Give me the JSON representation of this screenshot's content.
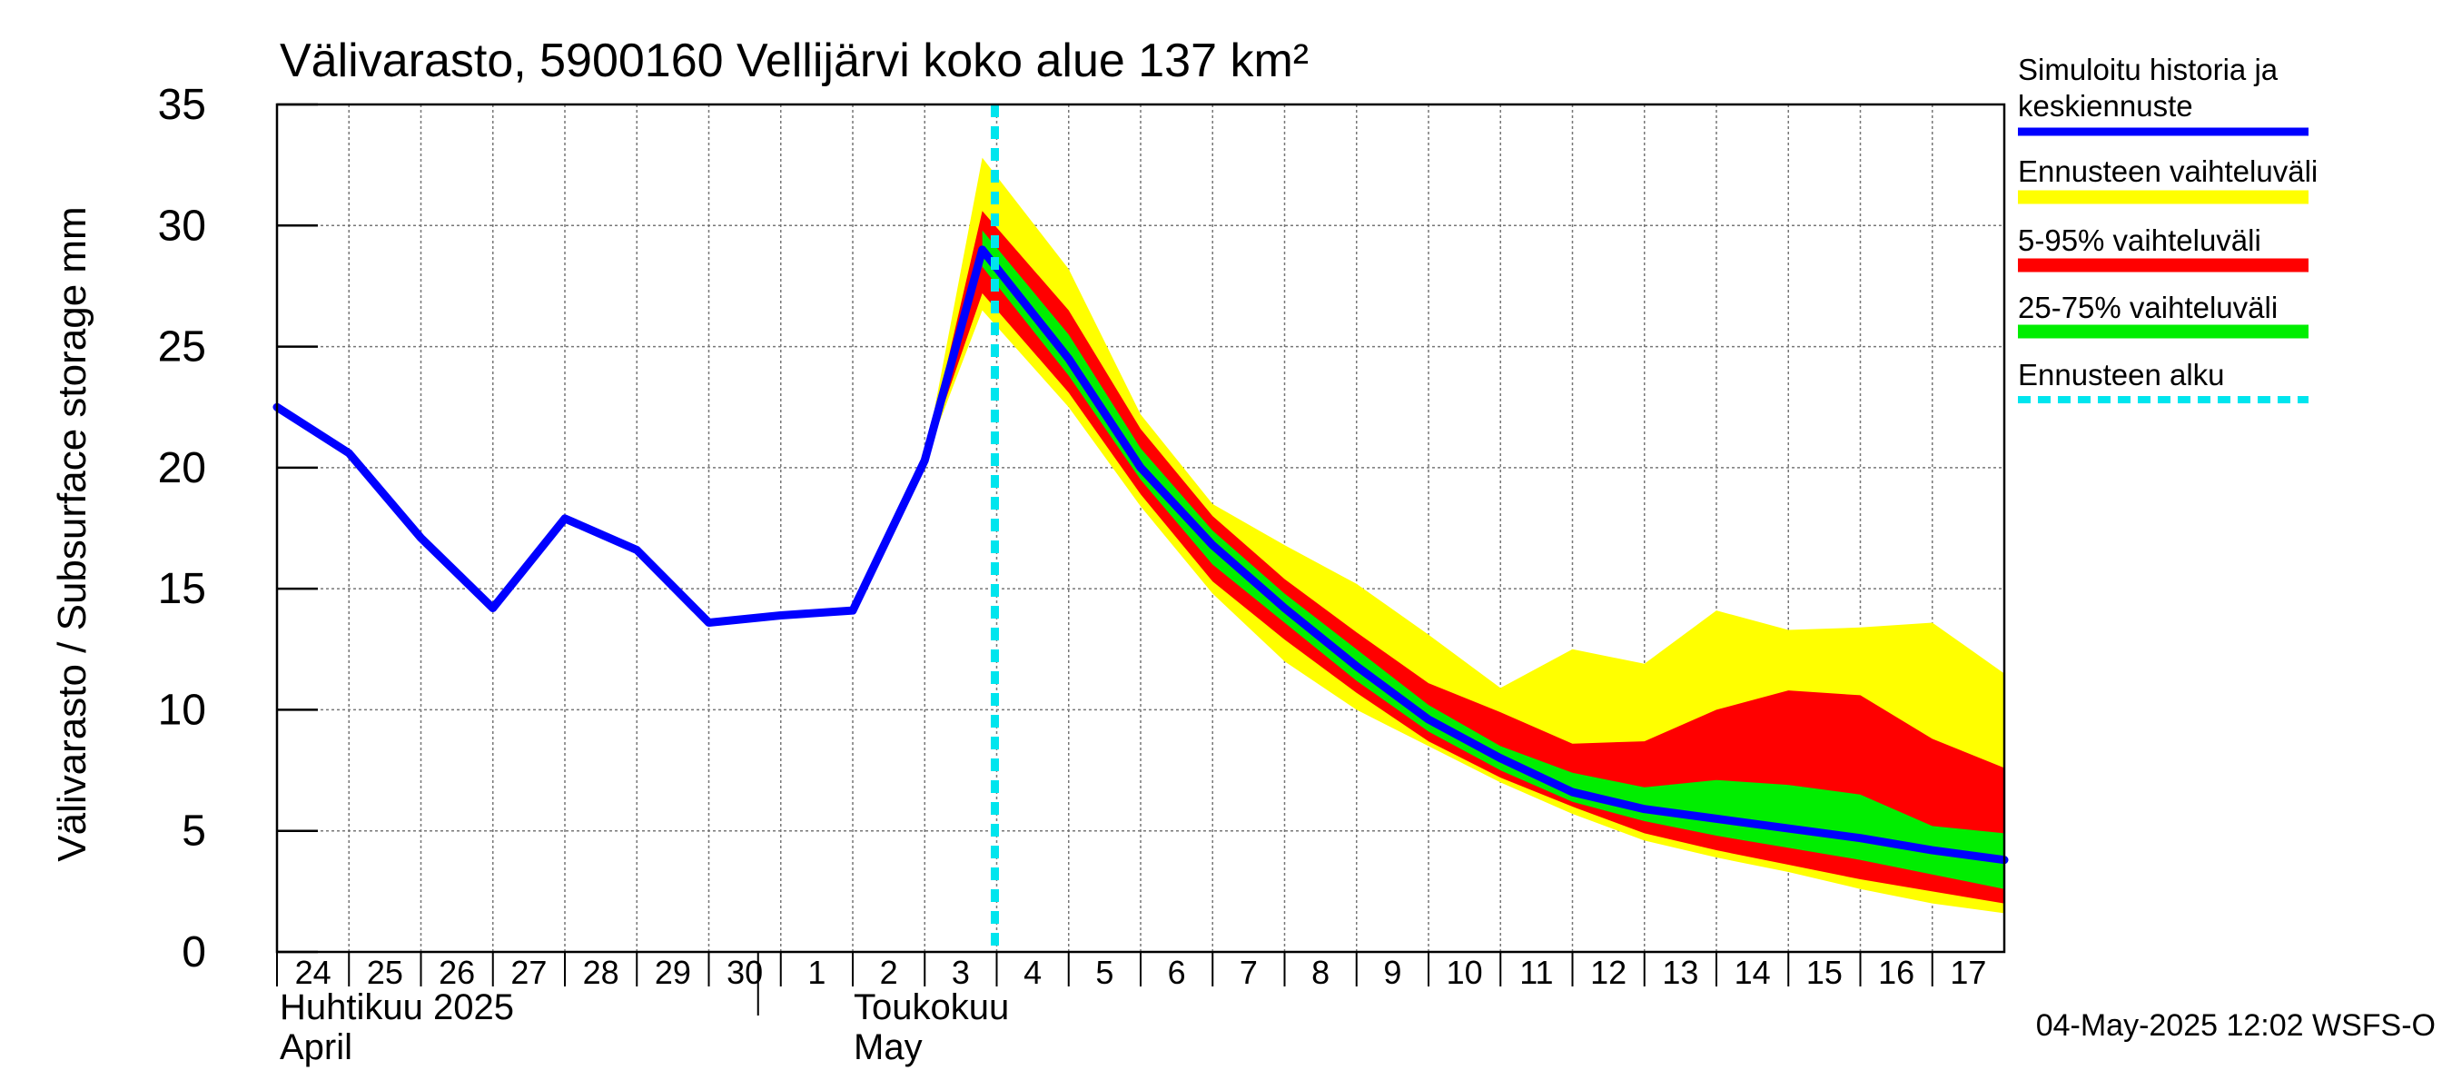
{
  "chart_data": {
    "type": "area",
    "title": "Välivarasto, 5900160 Vellijärvi koko alue 137 km²",
    "ylabel": "Välivarasto / Subsurface storage  mm",
    "ylim": [
      0,
      35
    ],
    "yticks": [
      0,
      5,
      10,
      15,
      20,
      25,
      30,
      35
    ],
    "grid": true,
    "x_day_labels": [
      "24",
      "25",
      "26",
      "27",
      "28",
      "29",
      "30",
      "1",
      "2",
      "3",
      "4",
      "5",
      "6",
      "7",
      "8",
      "9",
      "10",
      "11",
      "12",
      "13",
      "14",
      "15",
      "16",
      "17"
    ],
    "month_labels": {
      "april_fi": "Huhtikuu  2025",
      "april_en": "April",
      "may_fi": "Toukokuu",
      "may_en": "May"
    },
    "forecast_start_day_index": 10,
    "legend": {
      "position": "right",
      "entries": [
        {
          "label_line1": "Simuloitu historia ja",
          "label_line2": "keskiennuste",
          "color": "#0000ff"
        },
        {
          "label_line1": "Ennusteen vaihteluväli",
          "color": "#ffff00"
        },
        {
          "label_line1": "5-95% vaihteluväli",
          "color": "#ff0000"
        },
        {
          "label_line1": "25-75% vaihteluväli",
          "color": "#00ee00"
        },
        {
          "label_line1": "Ennusteen alku",
          "color": "#00e5ee"
        }
      ]
    },
    "series": {
      "history": {
        "name": "Simuloitu historia",
        "x": [
          0,
          1,
          2,
          3,
          4,
          5,
          6,
          7,
          8,
          9,
          9.8
        ],
        "y": [
          22.5,
          20.6,
          17.1,
          14.2,
          17.9,
          16.6,
          13.6,
          13.9,
          14.1,
          20.3,
          29.0
        ]
      },
      "median": {
        "name": "Keskiennuste",
        "x": [
          9.8,
          11,
          12,
          13,
          14,
          15,
          16,
          17,
          18,
          19,
          20,
          21,
          22,
          23,
          24
        ],
        "y": [
          29.0,
          24.5,
          20.0,
          16.8,
          14.2,
          11.8,
          9.6,
          8.0,
          6.6,
          5.9,
          5.5,
          5.1,
          4.7,
          4.2,
          3.8
        ]
      },
      "envelope_all": {
        "name": "Ennusteen vaihteluväli",
        "x": [
          9,
          9.8,
          11,
          12,
          13,
          14,
          15,
          16,
          17,
          18,
          19,
          20,
          21,
          22,
          23,
          24
        ],
        "upper": [
          20.3,
          32.8,
          28.2,
          22.2,
          18.5,
          16.8,
          15.2,
          13.1,
          10.9,
          12.5,
          11.9,
          14.1,
          13.3,
          13.4,
          13.6,
          11.5
        ],
        "lower": [
          20.3,
          26.5,
          22.5,
          18.4,
          14.8,
          12.0,
          10.0,
          8.5,
          7.0,
          5.7,
          4.6,
          3.9,
          3.3,
          2.6,
          2.0,
          1.6
        ]
      },
      "band_5_95": {
        "name": "5-95%",
        "x": [
          9,
          9.8,
          11,
          12,
          13,
          14,
          15,
          16,
          17,
          18,
          19,
          20,
          21,
          22,
          23,
          24
        ],
        "upper": [
          20.3,
          30.6,
          26.5,
          21.6,
          18.0,
          15.4,
          13.2,
          11.1,
          9.9,
          8.6,
          8.7,
          10.0,
          10.8,
          10.6,
          8.8,
          7.6
        ],
        "lower": [
          20.3,
          27.2,
          23.1,
          18.9,
          15.3,
          12.9,
          10.7,
          8.7,
          7.2,
          6.0,
          4.9,
          4.2,
          3.6,
          3.0,
          2.5,
          2.0
        ]
      },
      "band_25_75": {
        "name": "25-75%",
        "x": [
          9.8,
          11,
          12,
          13,
          14,
          15,
          16,
          17,
          18,
          19,
          20,
          21,
          22,
          23,
          24
        ],
        "upper": [
          29.8,
          25.5,
          20.8,
          17.4,
          14.8,
          12.5,
          10.2,
          8.5,
          7.4,
          6.8,
          7.1,
          6.9,
          6.5,
          5.2,
          4.9
        ],
        "lower": [
          28.3,
          23.8,
          19.5,
          16.0,
          13.6,
          11.2,
          9.1,
          7.5,
          6.2,
          5.4,
          4.8,
          4.3,
          3.8,
          3.2,
          2.6
        ]
      }
    },
    "footer": "04-May-2025 12:02 WSFS-O"
  }
}
